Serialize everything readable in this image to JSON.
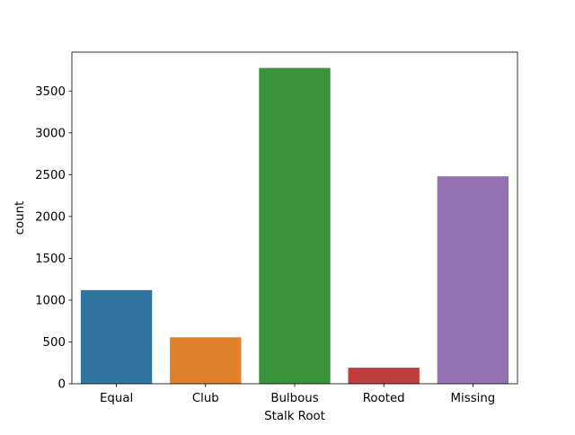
{
  "chart_data": {
    "type": "bar",
    "title": "",
    "xlabel": "Stalk Root",
    "ylabel": "count",
    "categories": [
      "Equal",
      "Club",
      "Bulbous",
      "Rooted",
      "Missing"
    ],
    "values": [
      1120,
      556,
      3776,
      192,
      2480
    ],
    "ylim": [
      0,
      3965
    ],
    "yticks": [
      0,
      500,
      1000,
      1500,
      2000,
      2500,
      3000,
      3500
    ],
    "ytick_labels": [
      "0",
      "500",
      "1000",
      "1500",
      "2000",
      "2500",
      "3000",
      "3500"
    ],
    "grid": false,
    "legend": false,
    "colors": [
      "#3274a1",
      "#e1812c",
      "#3a923a",
      "#c03d3e",
      "#9372b2"
    ]
  }
}
